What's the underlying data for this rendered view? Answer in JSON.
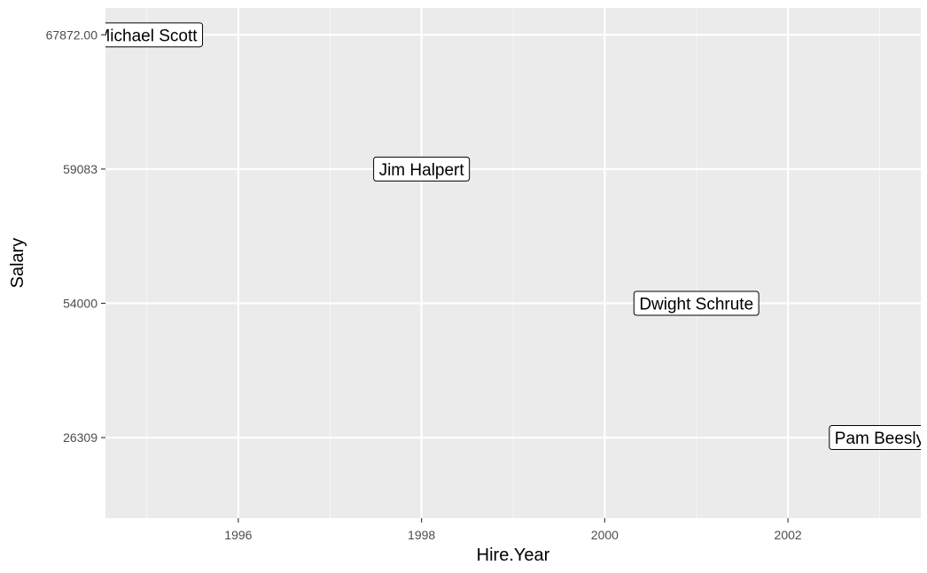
{
  "chart_data": {
    "type": "scatter",
    "title": "",
    "xlabel": "Hire.Year",
    "ylabel": "Salary",
    "xlim": [
      1994.55,
      2003.45
    ],
    "x_ticks": [
      1996,
      1998,
      2000,
      2002
    ],
    "x_tick_labels": [
      "1996",
      "1998",
      "2000",
      "2002"
    ],
    "y_axis_kind": "categorical",
    "y_categories": [
      "26309",
      "54000",
      "59083",
      "67872.00"
    ],
    "grid": true,
    "points": [
      {
        "label": "Michael Scott",
        "x": 1995,
        "y": "67872.00"
      },
      {
        "label": "Jim Halpert",
        "x": 1998,
        "y": "59083"
      },
      {
        "label": "Dwight Schrute",
        "x": 2001,
        "y": "54000"
      },
      {
        "label": "Pam Beesly",
        "x": 2003,
        "y": "26309"
      }
    ],
    "colors": {
      "panel_background": "#ebebeb",
      "grid_major": "#ffffff",
      "grid_minor": "#f5f5f5",
      "label_fill": "#ffffff",
      "label_border": "#000000",
      "tick_label": "#4d4d4d",
      "tick_mark": "#333333"
    }
  }
}
